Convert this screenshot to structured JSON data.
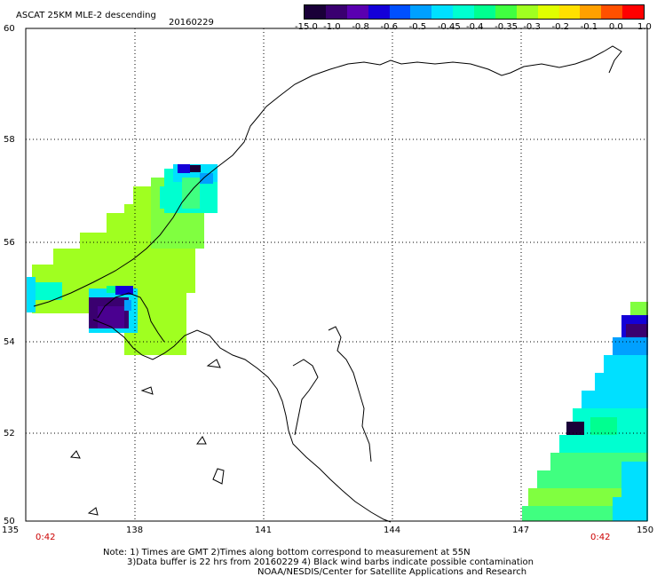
{
  "header": {
    "product": "ASCAT 25KM MLE-2 descending",
    "date": "20160229"
  },
  "colorbar": {
    "labels": [
      "-15.0",
      "-1.0",
      "-0.8",
      "-0.6",
      "-0.5",
      "-0.45",
      "-0.4",
      "-0.35",
      "-0.3",
      "-0.2",
      "-0.1",
      "0.0",
      "1.0"
    ],
    "colors": [
      "#1a0038",
      "#3a0070",
      "#5a00b0",
      "#1400d8",
      "#0050ff",
      "#00a0ff",
      "#00e0ff",
      "#00ffd0",
      "#00ff90",
      "#40ff40",
      "#a0ff20",
      "#e0ff00",
      "#ffe000",
      "#ffa000",
      "#ff5000",
      "#ff0000"
    ]
  },
  "axes": {
    "lon_labels": [
      "135",
      "138",
      "141",
      "144",
      "147",
      "150"
    ],
    "lat_labels": [
      "60",
      "58",
      "56",
      "54",
      "52",
      "50"
    ]
  },
  "times": {
    "left": "0:42",
    "right": "0:42"
  },
  "notes": [
    "Note: 1) Times are GMT 2)Times along bottom correspond to measurement at 55N",
    "3)Data buffer is 22 hrs from 20160229 4) Black wind barbs indicate possible contamination",
    "NOAA/NESDIS/Center for Satellite Applications and Research"
  ]
}
